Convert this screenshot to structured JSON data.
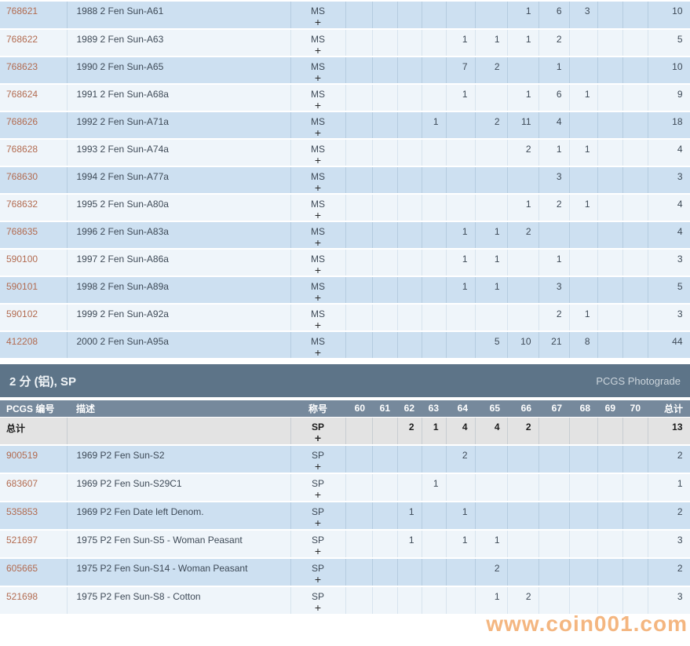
{
  "columns": {
    "id": "PCGS 编号",
    "desc": "描述",
    "grade_label": "称号",
    "grades": [
      "60",
      "61",
      "62",
      "63",
      "64",
      "65",
      "66",
      "67",
      "68",
      "69",
      "70"
    ],
    "total": "总计"
  },
  "ms_section": {
    "rows": [
      {
        "id": "768621",
        "desc": "1988 2 Fen Sun-A61",
        "title": "MS",
        "plus": "+",
        "cells": [
          "",
          "",
          "",
          "",
          "",
          "",
          "1",
          "6",
          "3",
          "",
          ""
        ],
        "total": "10"
      },
      {
        "id": "768622",
        "desc": "1989 2 Fen Sun-A63",
        "title": "MS",
        "plus": "+",
        "cells": [
          "",
          "",
          "",
          "",
          "1",
          "1",
          "1",
          "2",
          "",
          "",
          ""
        ],
        "total": "5"
      },
      {
        "id": "768623",
        "desc": "1990 2 Fen Sun-A65",
        "title": "MS",
        "plus": "+",
        "cells": [
          "",
          "",
          "",
          "",
          "7",
          "2",
          "",
          "1",
          "",
          "",
          ""
        ],
        "total": "10"
      },
      {
        "id": "768624",
        "desc": "1991 2 Fen Sun-A68a",
        "title": "MS",
        "plus": "+",
        "cells": [
          "",
          "",
          "",
          "",
          "1",
          "",
          "1",
          "6",
          "1",
          "",
          ""
        ],
        "total": "9"
      },
      {
        "id": "768626",
        "desc": "1992 2 Fen Sun-A71a",
        "title": "MS",
        "plus": "+",
        "cells": [
          "",
          "",
          "",
          "1",
          "",
          "2",
          "11",
          "4",
          "",
          "",
          ""
        ],
        "total": "18"
      },
      {
        "id": "768628",
        "desc": "1993 2 Fen Sun-A74a",
        "title": "MS",
        "plus": "+",
        "cells": [
          "",
          "",
          "",
          "",
          "",
          "",
          "2",
          "1",
          "1",
          "",
          ""
        ],
        "total": "4"
      },
      {
        "id": "768630",
        "desc": "1994 2 Fen Sun-A77a",
        "title": "MS",
        "plus": "+",
        "cells": [
          "",
          "",
          "",
          "",
          "",
          "",
          "",
          "3",
          "",
          "",
          ""
        ],
        "total": "3"
      },
      {
        "id": "768632",
        "desc": "1995 2 Fen Sun-A80a",
        "title": "MS",
        "plus": "+",
        "cells": [
          "",
          "",
          "",
          "",
          "",
          "",
          "1",
          "2",
          "1",
          "",
          ""
        ],
        "total": "4"
      },
      {
        "id": "768635",
        "desc": "1996 2 Fen Sun-A83a",
        "title": "MS",
        "plus": "+",
        "cells": [
          "",
          "",
          "",
          "",
          "1",
          "1",
          "2",
          "",
          "",
          "",
          ""
        ],
        "total": "4"
      },
      {
        "id": "590100",
        "desc": "1997 2 Fen Sun-A86a",
        "title": "MS",
        "plus": "+",
        "cells": [
          "",
          "",
          "",
          "",
          "1",
          "1",
          "",
          "1",
          "",
          "",
          ""
        ],
        "total": "3"
      },
      {
        "id": "590101",
        "desc": "1998 2 Fen Sun-A89a",
        "title": "MS",
        "plus": "+",
        "cells": [
          "",
          "",
          "",
          "",
          "1",
          "1",
          "",
          "3",
          "",
          "",
          ""
        ],
        "total": "5"
      },
      {
        "id": "590102",
        "desc": "1999 2 Fen Sun-A92a",
        "title": "MS",
        "plus": "+",
        "cells": [
          "",
          "",
          "",
          "",
          "",
          "",
          "",
          "2",
          "1",
          "",
          ""
        ],
        "total": "3"
      },
      {
        "id": "412208",
        "desc": "2000 2 Fen Sun-A95a",
        "title": "MS",
        "plus": "+",
        "cells": [
          "",
          "",
          "",
          "",
          "",
          "5",
          "10",
          "21",
          "8",
          "",
          ""
        ],
        "total": "44"
      }
    ]
  },
  "sp_section": {
    "title": "2 分 (铝), SP",
    "photograde_label": "PCGS Photograde",
    "total_row": {
      "label": "总计",
      "title": "SP",
      "plus": "+",
      "cells": [
        "",
        "",
        "2",
        "1",
        "4",
        "4",
        "2",
        "",
        "",
        "",
        ""
      ],
      "total": "13"
    },
    "rows": [
      {
        "id": "900519",
        "desc": "1969 P2 Fen Sun-S2",
        "title": "SP",
        "plus": "+",
        "cells": [
          "",
          "",
          "",
          "",
          "2",
          "",
          "",
          "",
          "",
          "",
          ""
        ],
        "total": "2"
      },
      {
        "id": "683607",
        "desc": "1969 P2 Fen Sun-S29C1",
        "title": "SP",
        "plus": "+",
        "cells": [
          "",
          "",
          "",
          "1",
          "",
          "",
          "",
          "",
          "",
          "",
          ""
        ],
        "total": "1"
      },
      {
        "id": "535853",
        "desc": "1969 P2 Fen Date left Denom.",
        "title": "SP",
        "plus": "+",
        "cells": [
          "",
          "",
          "1",
          "",
          "1",
          "",
          "",
          "",
          "",
          "",
          ""
        ],
        "total": "2"
      },
      {
        "id": "521697",
        "desc": "1975 P2 Fen Sun-S5 - Woman Peasant",
        "title": "SP",
        "plus": "+",
        "cells": [
          "",
          "",
          "1",
          "",
          "1",
          "1",
          "",
          "",
          "",
          "",
          ""
        ],
        "total": "3"
      },
      {
        "id": "605665",
        "desc": "1975 P2 Fen Sun-S14 - Woman Peasant",
        "title": "SP",
        "plus": "+",
        "cells": [
          "",
          "",
          "",
          "",
          "",
          "2",
          "",
          "",
          "",
          "",
          ""
        ],
        "total": "2"
      },
      {
        "id": "521698",
        "desc": "1975 P2 Fen Sun-S8 - Cotton",
        "title": "SP",
        "plus": "+",
        "cells": [
          "",
          "",
          "",
          "",
          "",
          "1",
          "2",
          "",
          "",
          "",
          ""
        ],
        "total": "3"
      }
    ]
  },
  "watermark": "www.coin001.com"
}
